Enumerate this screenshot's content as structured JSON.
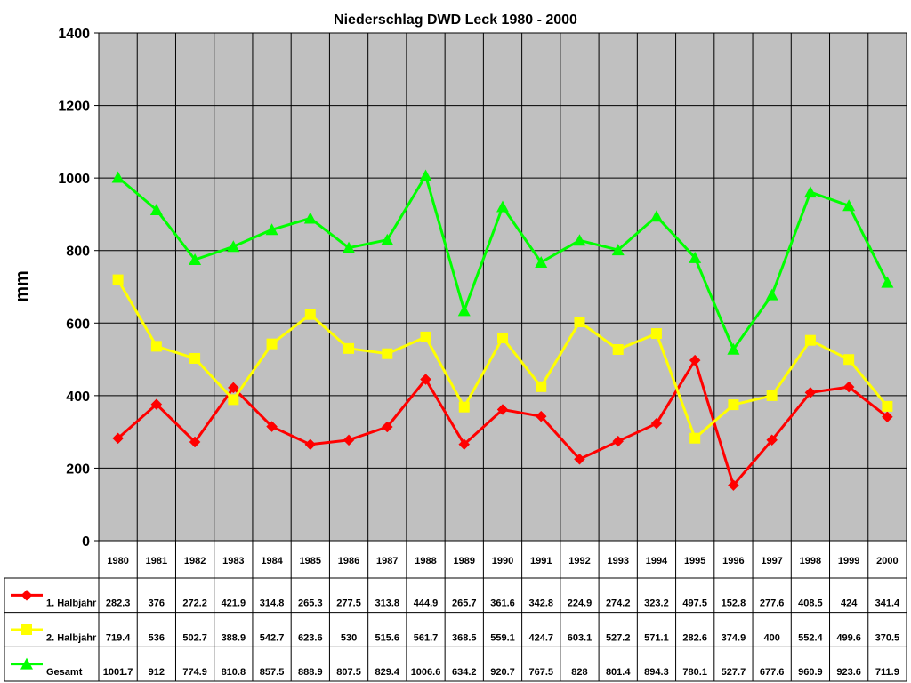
{
  "chart_data": {
    "type": "line",
    "title": "Niederschlag DWD Leck 1980 - 2000",
    "xlabel": "",
    "ylabel": "mm",
    "ylim": [
      0,
      1400
    ],
    "yticks": [
      0,
      200,
      400,
      600,
      800,
      1000,
      1200,
      1400
    ],
    "grid": true,
    "legend": "data-table",
    "categories": [
      "1980",
      "1981",
      "1982",
      "1983",
      "1984",
      "1985",
      "1986",
      "1987",
      "1988",
      "1989",
      "1990",
      "1991",
      "1992",
      "1993",
      "1994",
      "1995",
      "1996",
      "1997",
      "1998",
      "1999",
      "2000"
    ],
    "series": [
      {
        "name": "1. Halbjahr",
        "color": "#ff0000",
        "marker": "diamond",
        "values": [
          282.3,
          376,
          272.2,
          421.9,
          314.8,
          265.3,
          277.5,
          313.8,
          444.9,
          265.7,
          361.6,
          342.8,
          224.9,
          274.2,
          323.2,
          497.5,
          152.8,
          277.6,
          408.5,
          424,
          341.4
        ]
      },
      {
        "name": "2. Halbjahr",
        "color": "#ffff00",
        "marker": "square",
        "values": [
          719.4,
          536,
          502.7,
          388.9,
          542.7,
          623.6,
          530,
          515.6,
          561.7,
          368.5,
          559.1,
          424.7,
          603.1,
          527.2,
          571.1,
          282.6,
          374.9,
          400,
          552.4,
          499.6,
          370.5
        ]
      },
      {
        "name": "Gesamt",
        "color": "#00ff00",
        "marker": "triangle",
        "values": [
          1001.7,
          912,
          774.9,
          810.8,
          857.5,
          888.9,
          807.5,
          829.4,
          1006.6,
          634.2,
          920.7,
          767.5,
          828,
          801.4,
          894.3,
          780.1,
          527.7,
          677.6,
          960.9,
          923.6,
          711.9
        ]
      }
    ],
    "plot_background": "#c0c0c0"
  }
}
